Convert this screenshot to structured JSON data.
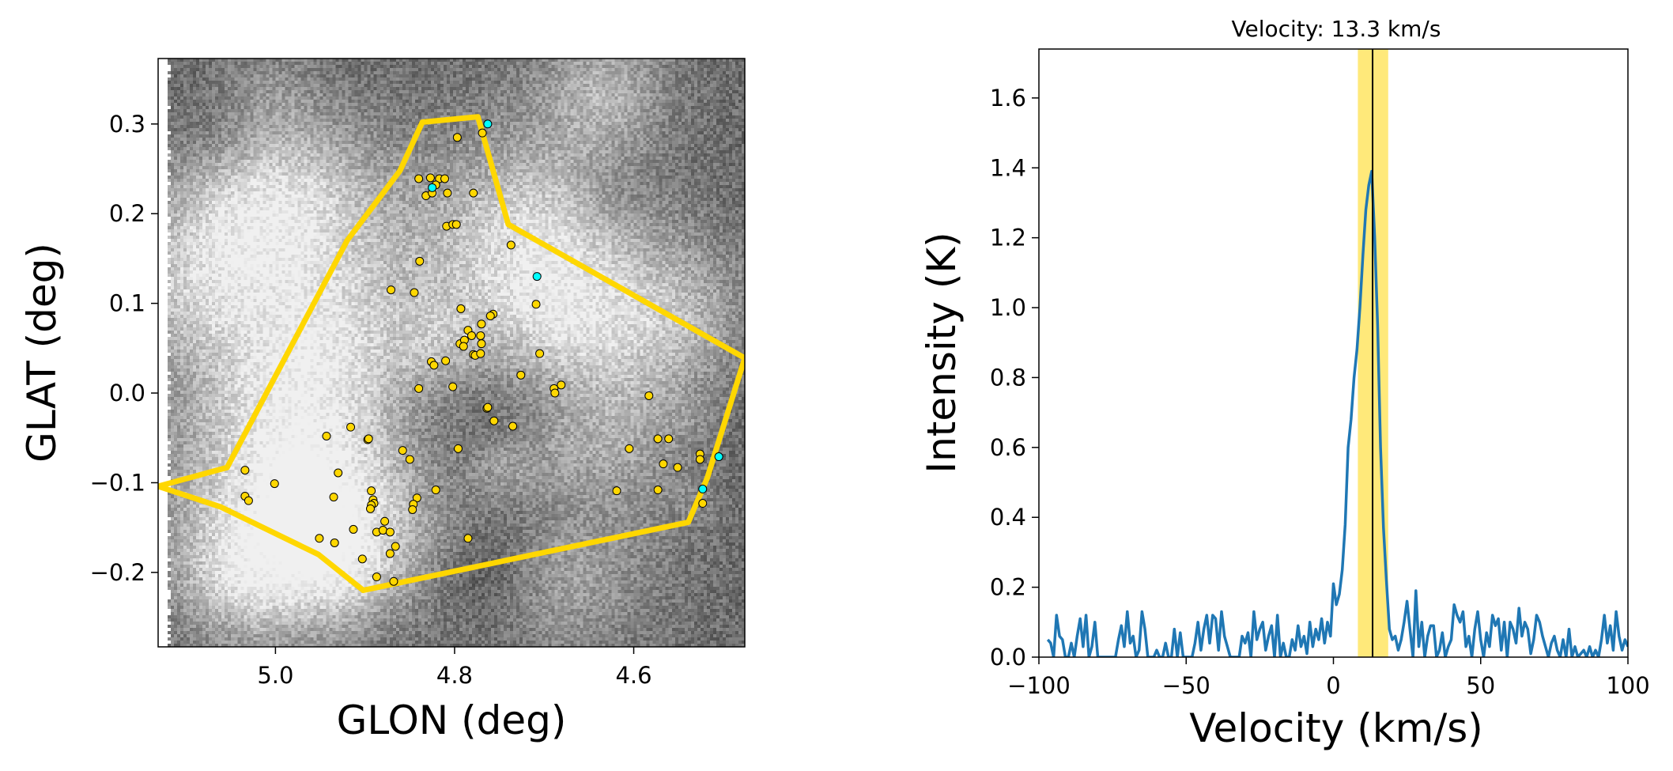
{
  "chart_data": [
    {
      "type": "scatter",
      "title": "",
      "xlabel": "GLON (deg)",
      "ylabel": "GLAT (deg)",
      "xlim": [
        5.131,
        4.476
      ],
      "ylim": [
        -0.283,
        0.373
      ],
      "xticks": [
        5.0,
        4.8,
        4.6
      ],
      "xtick_labels": [
        "5.0",
        "4.8",
        "4.6"
      ],
      "yticks": [
        -0.2,
        -0.1,
        0.0,
        0.1,
        0.2,
        0.3
      ],
      "ytick_labels": [
        "−0.2",
        "−0.1",
        "0.0",
        "0.1",
        "0.2",
        "0.3"
      ],
      "grid": false,
      "polygon": {
        "color": "#FFD700",
        "vertices": [
          [
            4.836,
            0.302
          ],
          [
            4.774,
            0.308
          ],
          [
            4.74,
            0.188
          ],
          [
            4.476,
            0.039
          ],
          [
            4.518,
            -0.095
          ],
          [
            4.539,
            -0.144
          ],
          [
            4.902,
            -0.22
          ],
          [
            4.952,
            -0.18
          ],
          [
            5.061,
            -0.127
          ],
          [
            5.131,
            -0.104
          ],
          [
            5.054,
            -0.083
          ],
          [
            4.92,
            0.17
          ],
          [
            4.861,
            0.248
          ]
        ]
      },
      "series": [
        {
          "name": "sources",
          "color": "#FFD700",
          "points": [
            [
              4.797,
              0.285
            ],
            [
              4.769,
              0.29
            ],
            [
              4.84,
              0.239
            ],
            [
              4.827,
              0.24
            ],
            [
              4.817,
              0.239
            ],
            [
              4.811,
              0.239
            ],
            [
              4.821,
              0.232
            ],
            [
              4.832,
              0.22
            ],
            [
              4.825,
              0.223
            ],
            [
              4.808,
              0.223
            ],
            [
              4.779,
              0.223
            ],
            [
              4.809,
              0.186
            ],
            [
              4.802,
              0.188
            ],
            [
              4.798,
              0.188
            ],
            [
              4.737,
              0.165
            ],
            [
              4.839,
              0.147
            ],
            [
              4.871,
              0.115
            ],
            [
              4.845,
              0.112
            ],
            [
              4.793,
              0.094
            ],
            [
              4.709,
              0.099
            ],
            [
              4.757,
              0.088
            ],
            [
              4.76,
              0.086
            ],
            [
              4.77,
              0.077
            ],
            [
              4.785,
              0.07
            ],
            [
              4.781,
              0.064
            ],
            [
              4.771,
              0.064
            ],
            [
              4.77,
              0.055
            ],
            [
              4.794,
              0.055
            ],
            [
              4.789,
              0.059
            ],
            [
              4.79,
              0.052
            ],
            [
              4.779,
              0.043
            ],
            [
              4.777,
              0.042
            ],
            [
              4.771,
              0.044
            ],
            [
              4.705,
              0.044
            ],
            [
              4.826,
              0.035
            ],
            [
              4.823,
              0.031
            ],
            [
              4.81,
              0.036
            ],
            [
              4.726,
              0.02
            ],
            [
              4.802,
              0.007
            ],
            [
              4.84,
              0.005
            ],
            [
              4.681,
              0.009
            ],
            [
              4.689,
              0.005
            ],
            [
              4.688,
              0.0
            ],
            [
              4.583,
              -0.003
            ],
            [
              4.764,
              -0.017
            ],
            [
              4.763,
              -0.016
            ],
            [
              4.756,
              -0.031
            ],
            [
              4.735,
              -0.037
            ],
            [
              4.916,
              -0.038
            ],
            [
              4.943,
              -0.048
            ],
            [
              4.897,
              -0.052
            ],
            [
              4.896,
              -0.051
            ],
            [
              4.796,
              -0.062
            ],
            [
              4.858,
              -0.064
            ],
            [
              4.85,
              -0.074
            ],
            [
              4.605,
              -0.062
            ],
            [
              4.573,
              -0.051
            ],
            [
              4.561,
              -0.051
            ],
            [
              4.526,
              -0.068
            ],
            [
              4.526,
              -0.074
            ],
            [
              4.567,
              -0.079
            ],
            [
              4.551,
              -0.083
            ],
            [
              5.034,
              -0.086
            ],
            [
              4.93,
              -0.089
            ],
            [
              5.001,
              -0.101
            ],
            [
              4.893,
              -0.109
            ],
            [
              4.821,
              -0.108
            ],
            [
              4.619,
              -0.109
            ],
            [
              4.573,
              -0.108
            ],
            [
              4.523,
              -0.123
            ],
            [
              5.034,
              -0.115
            ],
            [
              5.03,
              -0.12
            ],
            [
              4.935,
              -0.116
            ],
            [
              4.891,
              -0.119
            ],
            [
              4.89,
              -0.123
            ],
            [
              4.893,
              -0.125
            ],
            [
              4.894,
              -0.129
            ],
            [
              4.842,
              -0.117
            ],
            [
              4.846,
              -0.124
            ],
            [
              4.847,
              -0.13
            ],
            [
              4.913,
              -0.152
            ],
            [
              4.878,
              -0.143
            ],
            [
              4.887,
              -0.155
            ],
            [
              4.88,
              -0.153
            ],
            [
              4.872,
              -0.155
            ],
            [
              4.785,
              -0.162
            ],
            [
              4.951,
              -0.162
            ],
            [
              4.934,
              -0.167
            ],
            [
              4.866,
              -0.171
            ],
            [
              4.872,
              -0.179
            ],
            [
              4.903,
              -0.185
            ],
            [
              4.887,
              -0.205
            ],
            [
              4.868,
              -0.21
            ]
          ]
        },
        {
          "name": "sources-highlight",
          "color": "#00FFFF",
          "points": [
            [
              4.763,
              0.3
            ],
            [
              4.825,
              0.229
            ],
            [
              4.708,
              0.13
            ],
            [
              4.505,
              -0.071
            ],
            [
              4.523,
              -0.107
            ]
          ]
        }
      ]
    },
    {
      "type": "line",
      "title": "Velocity: 13.3 km/s",
      "xlabel": "Velocity (km/s)",
      "ylabel": "Intensity (K)",
      "xlim": [
        -100,
        100
      ],
      "ylim": [
        0,
        1.74
      ],
      "xticks": [
        -100,
        -50,
        0,
        50,
        100
      ],
      "xtick_labels": [
        "−100",
        "−50",
        "0",
        "50",
        "100"
      ],
      "yticks": [
        0.0,
        0.2,
        0.4,
        0.6,
        0.8,
        1.0,
        1.2,
        1.4,
        1.6
      ],
      "ytick_labels": [
        "0.0",
        "0.2",
        "0.4",
        "0.6",
        "0.8",
        "1.0",
        "1.2",
        "1.4",
        "1.6"
      ],
      "grid": false,
      "highlight_range": [
        8.3,
        18.6
      ],
      "highlight_color": "#FFE97A",
      "marker_velocity": 13.3,
      "marker_color": "#000000",
      "series": [
        {
          "name": "spectrum",
          "color": "#1f77b4",
          "x_start": -97,
          "x_step": 1,
          "values": [
            0.05,
            0.04,
            0,
            0.12,
            0.06,
            0.05,
            0,
            0,
            0.04,
            0,
            0.06,
            0.11,
            0.03,
            0.12,
            0,
            0.03,
            0.1,
            0,
            0,
            0,
            0,
            0,
            0,
            0,
            0.05,
            0.09,
            0.03,
            0.13,
            0.04,
            0.06,
            0,
            0.02,
            0.13,
            0.08,
            0,
            0,
            0,
            0.02,
            0,
            0,
            0.04,
            0,
            0,
            0.08,
            0,
            0.07,
            0,
            0,
            0,
            0,
            0.04,
            0.1,
            0.02,
            0.08,
            0.12,
            0.04,
            0.12,
            0.11,
            0.02,
            0.13,
            0.06,
            0.03,
            0,
            0,
            0,
            0,
            0.06,
            0.04,
            0.07,
            0,
            0.13,
            0.05,
            0.08,
            0.1,
            0.02,
            0.06,
            0.09,
            0,
            0.12,
            0,
            0.04,
            0,
            0,
            0.05,
            0.02,
            0.09,
            0.03,
            0.06,
            0.01,
            0.1,
            0.03,
            0.08,
            0.05,
            0.11,
            0.04,
            0.1,
            0.06,
            0.21,
            0.15,
            0.18,
            0.25,
            0.38,
            0.6,
            0.68,
            0.8,
            0.88,
            1.0,
            1.15,
            1.28,
            1.35,
            1.39,
            1.2,
            0.95,
            0.6,
            0.37,
            0.22,
            0.08,
            0.05,
            0.06,
            0.02,
            0.05,
            0.1,
            0.16,
            0.08,
            0,
            0.19,
            0.03,
            0.1,
            0,
            0.06,
            0.09,
            0.09,
            0,
            0.02,
            0.07,
            0,
            0.03,
            0.05,
            0.15,
            0.12,
            0.1,
            0.13,
            0.03,
            0.06,
            0,
            0.08,
            0.13,
            0.05,
            0,
            0.07,
            0.03,
            0.12,
            0.09,
            0.11,
            0.02,
            0.1,
            0,
            0.1,
            0.08,
            0.04,
            0.14,
            0.06,
            0.1,
            0.08,
            0.01,
            0.05,
            0.12,
            0.1,
            0.06,
            0.03,
            0,
            0.04,
            0.06,
            0.02,
            0,
            0.05,
            0,
            0.08,
            0,
            0.03,
            0,
            0.01,
            0.02,
            0,
            0.03,
            0,
            0.02,
            0,
            0.05,
            0.12,
            0.04,
            0.09,
            0.02,
            0.13,
            0.06,
            0.02,
            0.05,
            0.03
          ]
        }
      ]
    }
  ]
}
